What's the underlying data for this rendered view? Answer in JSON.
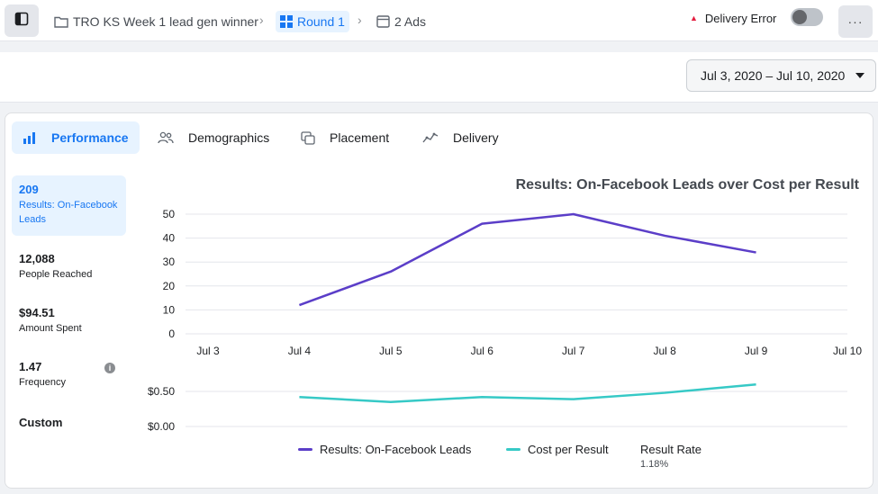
{
  "breadcrumb": {
    "campaign": "TRO KS Week 1 lead gen winner",
    "ad_set": "Round 1",
    "ads": "2 Ads"
  },
  "header": {
    "delivery_status": "Delivery Error",
    "more_label": "···"
  },
  "date_range": "Jul 3, 2020 – Jul 10, 2020",
  "tabs": [
    {
      "label": "Performance",
      "icon": "bar-chart-icon",
      "active": true
    },
    {
      "label": "Demographics",
      "icon": "people-icon"
    },
    {
      "label": "Placement",
      "icon": "placement-icon"
    },
    {
      "label": "Delivery",
      "icon": "delivery-icon"
    }
  ],
  "metrics": [
    {
      "value": "209",
      "label": "Results: On-Facebook Leads",
      "active": true
    },
    {
      "value": "12,088",
      "label": "People Reached"
    },
    {
      "value": "$94.51",
      "label": "Amount Spent"
    },
    {
      "value": "1.47",
      "label": "Frequency"
    },
    {
      "value": "Custom",
      "label": ""
    }
  ],
  "colors": {
    "accent": "#1877f2",
    "results_line": "#5b3ec8",
    "cost_line": "#36c9c6",
    "error": "#e41e3f"
  },
  "chart_data": {
    "type": "line",
    "title": "Results: On-Facebook Leads over Cost per Result",
    "categories": [
      "Jul 3",
      "Jul 4",
      "Jul 5",
      "Jul 6",
      "Jul 7",
      "Jul 8",
      "Jul 9",
      "Jul 10"
    ],
    "top_y_ticks": [
      "0",
      "10",
      "20",
      "30",
      "40",
      "50"
    ],
    "bottom_y_ticks": [
      "$0.00",
      "$0.50"
    ],
    "top_ylim": [
      0,
      50
    ],
    "bottom_ylim": [
      0,
      0.5
    ],
    "series": [
      {
        "name": "Results: On-Facebook Leads",
        "color": "#5b3ec8",
        "values": [
          null,
          12,
          26,
          46,
          50,
          41,
          34,
          null
        ]
      },
      {
        "name": "Cost per Result",
        "color": "#36c9c6",
        "values": [
          null,
          0.42,
          0.35,
          0.42,
          0.39,
          0.48,
          0.6,
          null
        ]
      }
    ],
    "result_rate": {
      "label": "Result Rate",
      "value": "1.18%"
    },
    "grid": true
  }
}
